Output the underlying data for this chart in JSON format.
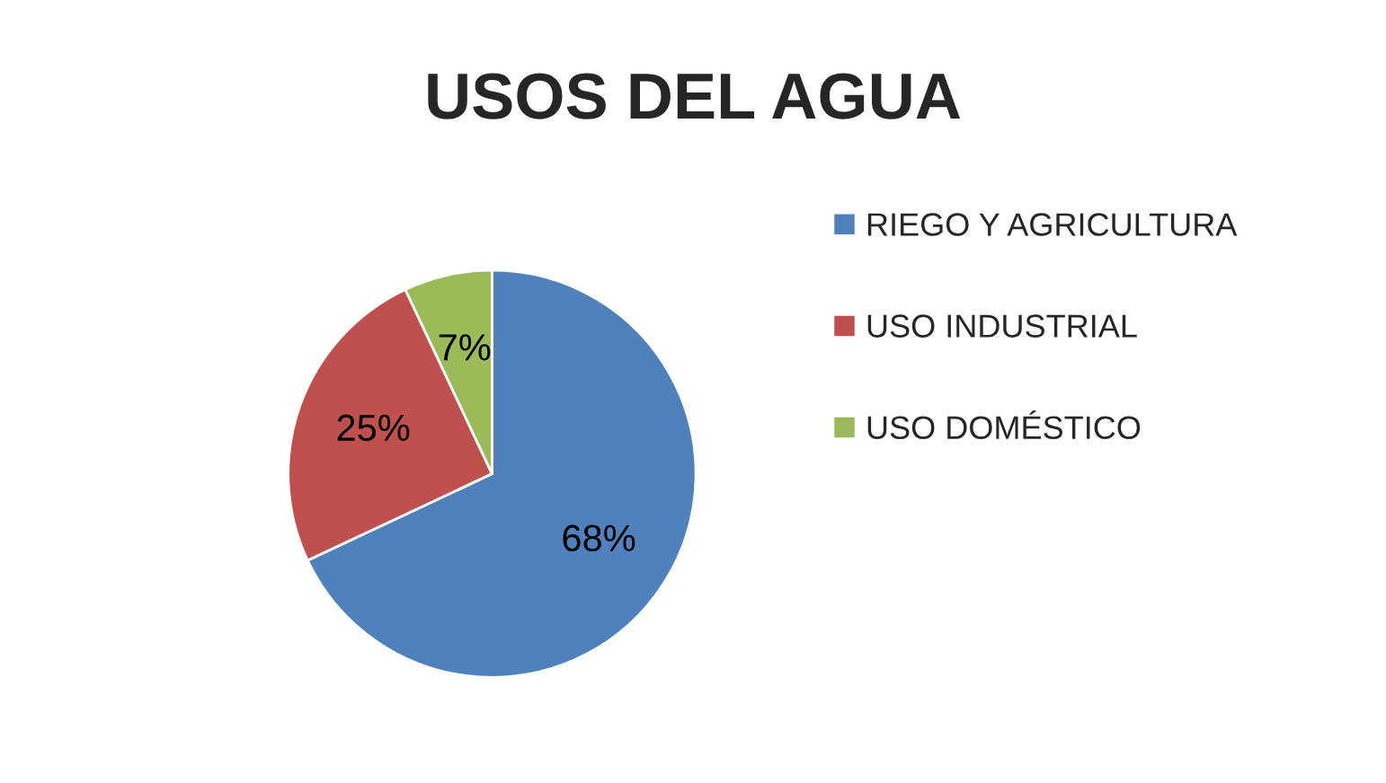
{
  "chart_data": {
    "type": "pie",
    "title": "USOS DEL AGUA",
    "categories": [
      "RIEGO Y AGRICULTURA",
      "USO INDUSTRIAL",
      "USO DOMÉSTICO"
    ],
    "values": [
      68,
      25,
      7
    ],
    "colors": [
      "#4f81bd",
      "#c0504d",
      "#9bbb59"
    ],
    "value_labels": [
      "68%",
      "25%",
      "7%"
    ],
    "legend": "right"
  }
}
